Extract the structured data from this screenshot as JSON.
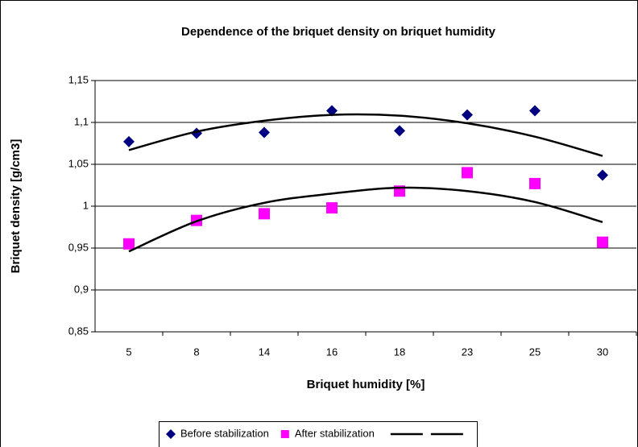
{
  "chart_data": {
    "type": "scatter",
    "title": "Dependence of the briquet density on briquet humidity",
    "x_label": "Briquet humidity [%]",
    "y_label": "Briquet density [g/cm3]",
    "categories": [
      "5",
      "8",
      "14",
      "16",
      "18",
      "23",
      "25",
      "30"
    ],
    "ylim": [
      0.85,
      1.15
    ],
    "yticks": [
      {
        "value": 0.85,
        "label": "0,85"
      },
      {
        "value": 0.9,
        "label": "0,9"
      },
      {
        "value": 0.95,
        "label": "0,95"
      },
      1,
      {
        "value": 1.05,
        "label": "1,05"
      },
      {
        "value": 1.1,
        "label": "1,1"
      },
      {
        "value": 1.15,
        "label": "1,15"
      }
    ],
    "grid": true,
    "legend": "bottom",
    "series": [
      {
        "name": "Before stabilization",
        "color": "#000080",
        "marker": "diamond",
        "values": [
          1.077,
          1.087,
          1.088,
          1.114,
          1.09,
          1.109,
          1.114,
          1.037
        ]
      },
      {
        "name": "After stabilization",
        "color": "#ff00ff",
        "marker": "square",
        "values": [
          0.955,
          0.983,
          0.991,
          0.998,
          1.018,
          1.04,
          1.027,
          0.957
        ]
      },
      {
        "color": "#000000",
        "marker": "line",
        "values": [
          1.067,
          1.089,
          1.102,
          1.109,
          1.108,
          1.099,
          1.083,
          1.06
        ]
      },
      {
        "color": "#000000",
        "marker": "line",
        "values": [
          0.946,
          0.982,
          1.004,
          1.015,
          1.022,
          1.018,
          1.005,
          0.981
        ]
      }
    ]
  }
}
